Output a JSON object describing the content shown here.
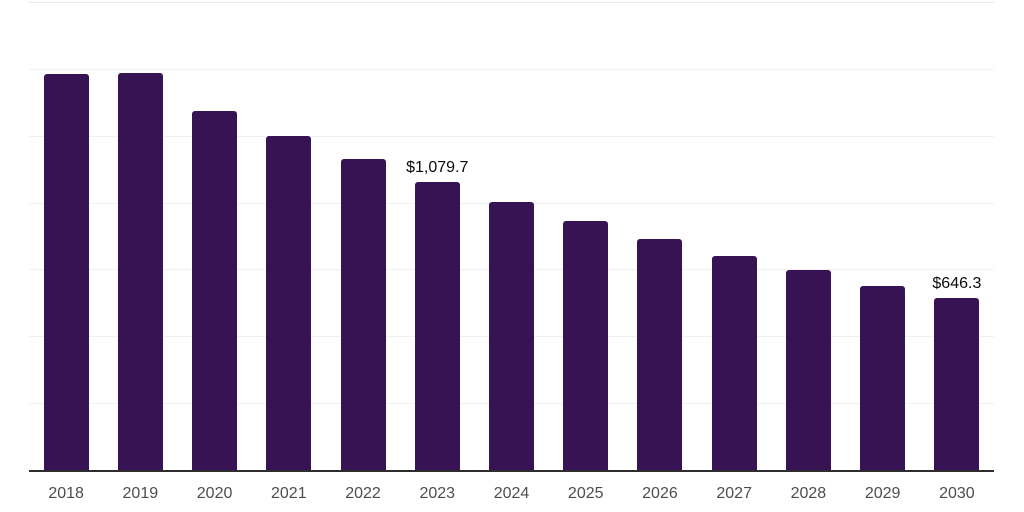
{
  "chart_data": {
    "type": "bar",
    "title": "",
    "xlabel": "",
    "ylabel": "",
    "categories": [
      "2018",
      "2019",
      "2020",
      "2021",
      "2022",
      "2023",
      "2024",
      "2025",
      "2026",
      "2027",
      "2028",
      "2029",
      "2030"
    ],
    "values": [
      1485.0,
      1486.9,
      1345.9,
      1252.1,
      1166.1,
      1079.7,
      1004.6,
      933.6,
      866.1,
      802.4,
      749.8,
      689.8,
      646.3
    ],
    "data_labels": [
      {
        "index": 5,
        "text": "$1,079.7"
      },
      {
        "index": 12,
        "text": "$646.3"
      }
    ],
    "ylim": [
      0,
      1750
    ],
    "grid_step": 250,
    "grid": true,
    "y_tick_labels_visible": false,
    "legend_position": "none",
    "bar_color": "#371353",
    "grid_color": "#f1f1f1",
    "top_border_color": "#e8e8e8",
    "axis_color": "#2d2d2d",
    "tick_label_color": "#4d4d4d",
    "data_label_color": "#0a0a0a",
    "background": "#ffffff"
  }
}
